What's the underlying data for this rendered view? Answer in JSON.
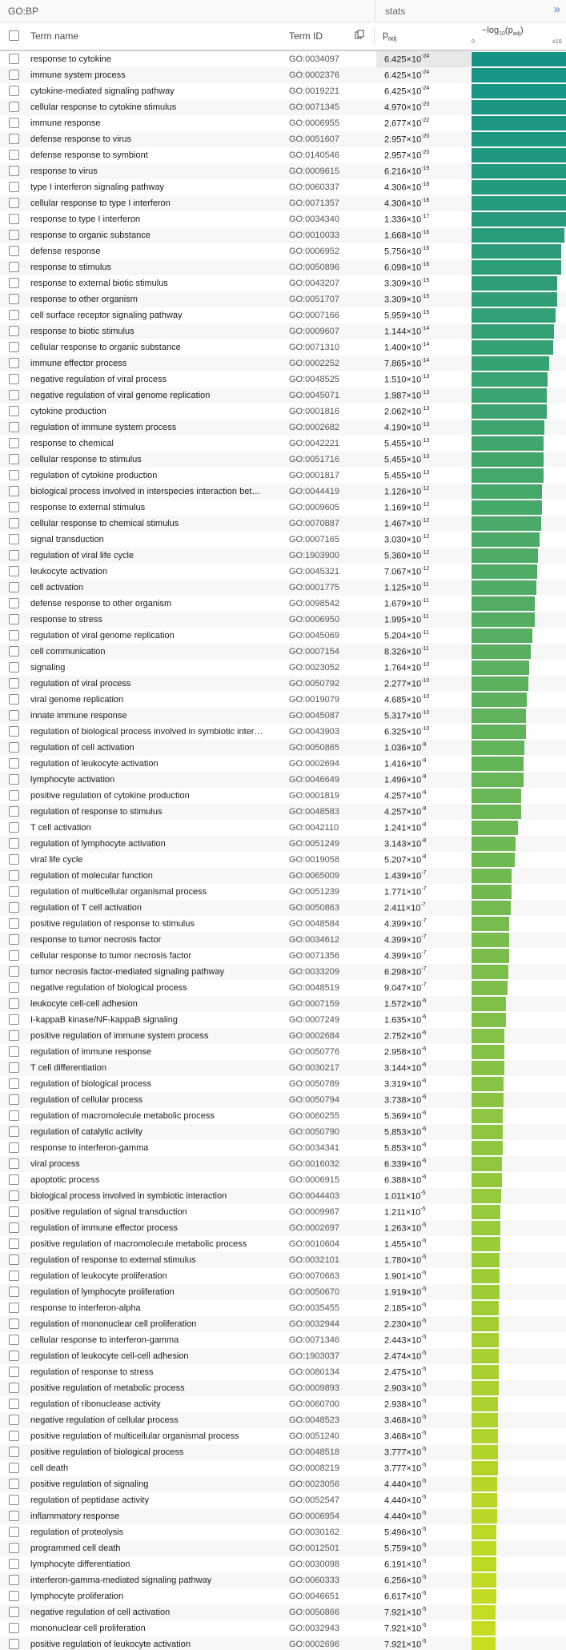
{
  "header": {
    "source": "GO:BP",
    "stats_label": "stats",
    "expand_icon": "»",
    "col_term": "Term name",
    "col_id": "Term ID",
    "col_padj_main": "p",
    "col_padj_sub": "adj",
    "col_log_pre": "−log",
    "col_log_sub": "10",
    "col_log_mid": "(p",
    "col_log_sub2": "adj",
    "col_log_post": ")",
    "scale_min": "0",
    "scale_max": "≤16"
  },
  "colors": {
    "bar_start": "#159486",
    "bar_end": "#c7dd1f",
    "link": "#4a78d6"
  },
  "rows": [
    {
      "name": "response to cytokine",
      "id": "GO:0034097",
      "m": "6.425×10",
      "e": "-24",
      "v": 16
    },
    {
      "name": "immune system process",
      "id": "GO:0002376",
      "m": "6.425×10",
      "e": "-24",
      "v": 16
    },
    {
      "name": "cytokine-mediated signaling pathway",
      "id": "GO:0019221",
      "m": "6.425×10",
      "e": "-24",
      "v": 16
    },
    {
      "name": "cellular response to cytokine stimulus",
      "id": "GO:0071345",
      "m": "4.970×10",
      "e": "-23",
      "v": 16
    },
    {
      "name": "immune response",
      "id": "GO:0006955",
      "m": "2.677×10",
      "e": "-22",
      "v": 16
    },
    {
      "name": "defense response to virus",
      "id": "GO:0051607",
      "m": "2.957×10",
      "e": "-20",
      "v": 16
    },
    {
      "name": "defense response to symbiont",
      "id": "GO:0140546",
      "m": "2.957×10",
      "e": "-20",
      "v": 16
    },
    {
      "name": "response to virus",
      "id": "GO:0009615",
      "m": "6.216×10",
      "e": "-19",
      "v": 16
    },
    {
      "name": "type I interferon signaling pathway",
      "id": "GO:0060337",
      "m": "4.306×10",
      "e": "-18",
      "v": 16
    },
    {
      "name": "cellular response to type I interferon",
      "id": "GO:0071357",
      "m": "4.306×10",
      "e": "-18",
      "v": 16
    },
    {
      "name": "response to type I interferon",
      "id": "GO:0034340",
      "m": "1.336×10",
      "e": "-17",
      "v": 16
    },
    {
      "name": "response to organic substance",
      "id": "GO:0010033",
      "m": "1.668×10",
      "e": "-16",
      "v": 15.78
    },
    {
      "name": "defense response",
      "id": "GO:0006952",
      "m": "5.756×10",
      "e": "-16",
      "v": 15.24
    },
    {
      "name": "response to stimulus",
      "id": "GO:0050896",
      "m": "6.098×10",
      "e": "-16",
      "v": 15.21
    },
    {
      "name": "response to external biotic stimulus",
      "id": "GO:0043207",
      "m": "3.309×10",
      "e": "-15",
      "v": 14.48
    },
    {
      "name": "response to other organism",
      "id": "GO:0051707",
      "m": "3.309×10",
      "e": "-15",
      "v": 14.48
    },
    {
      "name": "cell surface receptor signaling pathway",
      "id": "GO:0007166",
      "m": "5.959×10",
      "e": "-15",
      "v": 14.22
    },
    {
      "name": "response to biotic stimulus",
      "id": "GO:0009607",
      "m": "1.144×10",
      "e": "-14",
      "v": 13.94
    },
    {
      "name": "cellular response to organic substance",
      "id": "GO:0071310",
      "m": "1.400×10",
      "e": "-14",
      "v": 13.85
    },
    {
      "name": "immune effector process",
      "id": "GO:0002252",
      "m": "7.865×10",
      "e": "-14",
      "v": 13.1
    },
    {
      "name": "negative regulation of viral process",
      "id": "GO:0048525",
      "m": "1.510×10",
      "e": "-13",
      "v": 12.82
    },
    {
      "name": "negative regulation of viral genome replication",
      "id": "GO:0045071",
      "m": "1.987×10",
      "e": "-13",
      "v": 12.7
    },
    {
      "name": "cytokine production",
      "id": "GO:0001816",
      "m": "2.062×10",
      "e": "-13",
      "v": 12.69
    },
    {
      "name": "regulation of immune system process",
      "id": "GO:0002682",
      "m": "4.190×10",
      "e": "-13",
      "v": 12.38
    },
    {
      "name": "response to chemical",
      "id": "GO:0042221",
      "m": "5.455×10",
      "e": "-13",
      "v": 12.26
    },
    {
      "name": "cellular response to stimulus",
      "id": "GO:0051716",
      "m": "5.455×10",
      "e": "-13",
      "v": 12.26
    },
    {
      "name": "regulation of cytokine production",
      "id": "GO:0001817",
      "m": "5.455×10",
      "e": "-13",
      "v": 12.26
    },
    {
      "name": "biological process involved in interspecies interaction between organisms",
      "id": "GO:0044419",
      "m": "1.126×10",
      "e": "-12",
      "v": 11.95
    },
    {
      "name": "response to external stimulus",
      "id": "GO:0009605",
      "m": "1.169×10",
      "e": "-12",
      "v": 11.93
    },
    {
      "name": "cellular response to chemical stimulus",
      "id": "GO:0070887",
      "m": "1.467×10",
      "e": "-12",
      "v": 11.83
    },
    {
      "name": "signal transduction",
      "id": "GO:0007165",
      "m": "3.030×10",
      "e": "-12",
      "v": 11.52
    },
    {
      "name": "regulation of viral life cycle",
      "id": "GO:1903900",
      "m": "5.360×10",
      "e": "-12",
      "v": 11.27
    },
    {
      "name": "leukocyte activation",
      "id": "GO:0045321",
      "m": "7.067×10",
      "e": "-12",
      "v": 11.15
    },
    {
      "name": "cell activation",
      "id": "GO:0001775",
      "m": "1.125×10",
      "e": "-11",
      "v": 10.95
    },
    {
      "name": "defense response to other organism",
      "id": "GO:0098542",
      "m": "1.679×10",
      "e": "-11",
      "v": 10.77
    },
    {
      "name": "response to stress",
      "id": "GO:0006950",
      "m": "1.995×10",
      "e": "-11",
      "v": 10.7
    },
    {
      "name": "regulation of viral genome replication",
      "id": "GO:0045069",
      "m": "5.204×10",
      "e": "-11",
      "v": 10.28
    },
    {
      "name": "cell communication",
      "id": "GO:0007154",
      "m": "8.326×10",
      "e": "-11",
      "v": 10.08
    },
    {
      "name": "signaling",
      "id": "GO:0023052",
      "m": "1.764×10",
      "e": "-10",
      "v": 9.75
    },
    {
      "name": "regulation of viral process",
      "id": "GO:0050792",
      "m": "2.277×10",
      "e": "-10",
      "v": 9.64
    },
    {
      "name": "viral genome replication",
      "id": "GO:0019079",
      "m": "4.685×10",
      "e": "-10",
      "v": 9.33
    },
    {
      "name": "innate immune response",
      "id": "GO:0045087",
      "m": "5.317×10",
      "e": "-10",
      "v": 9.27
    },
    {
      "name": "regulation of biological process involved in symbiotic interaction",
      "id": "GO:0043903",
      "m": "6.325×10",
      "e": "-10",
      "v": 9.2
    },
    {
      "name": "regulation of cell activation",
      "id": "GO:0050865",
      "m": "1.036×10",
      "e": "-9",
      "v": 8.98
    },
    {
      "name": "regulation of leukocyte activation",
      "id": "GO:0002694",
      "m": "1.416×10",
      "e": "-9",
      "v": 8.85
    },
    {
      "name": "lymphocyte activation",
      "id": "GO:0046649",
      "m": "1.496×10",
      "e": "-9",
      "v": 8.83
    },
    {
      "name": "positive regulation of cytokine production",
      "id": "GO:0001819",
      "m": "4.257×10",
      "e": "-9",
      "v": 8.37
    },
    {
      "name": "regulation of response to stimulus",
      "id": "GO:0048583",
      "m": "4.257×10",
      "e": "-9",
      "v": 8.37
    },
    {
      "name": "T cell activation",
      "id": "GO:0042110",
      "m": "1.241×10",
      "e": "-8",
      "v": 7.91
    },
    {
      "name": "regulation of lymphocyte activation",
      "id": "GO:0051249",
      "m": "3.143×10",
      "e": "-8",
      "v": 7.5
    },
    {
      "name": "viral life cycle",
      "id": "GO:0019058",
      "m": "5.207×10",
      "e": "-8",
      "v": 7.28
    },
    {
      "name": "regulation of molecular function",
      "id": "GO:0065009",
      "m": "1.439×10",
      "e": "-7",
      "v": 6.84
    },
    {
      "name": "regulation of multicellular organismal process",
      "id": "GO:0051239",
      "m": "1.771×10",
      "e": "-7",
      "v": 6.75
    },
    {
      "name": "regulation of T cell activation",
      "id": "GO:0050863",
      "m": "2.411×10",
      "e": "-7",
      "v": 6.62
    },
    {
      "name": "positive regulation of response to stimulus",
      "id": "GO:0048584",
      "m": "4.399×10",
      "e": "-7",
      "v": 6.36
    },
    {
      "name": "response to tumor necrosis factor",
      "id": "GO:0034612",
      "m": "4.399×10",
      "e": "-7",
      "v": 6.36
    },
    {
      "name": "cellular response to tumor necrosis factor",
      "id": "GO:0071356",
      "m": "4.399×10",
      "e": "-7",
      "v": 6.36
    },
    {
      "name": "tumor necrosis factor-mediated signaling pathway",
      "id": "GO:0033209",
      "m": "6.298×10",
      "e": "-7",
      "v": 6.2
    },
    {
      "name": "negative regulation of biological process",
      "id": "GO:0048519",
      "m": "9.047×10",
      "e": "-7",
      "v": 6.04
    },
    {
      "name": "leukocyte cell-cell adhesion",
      "id": "GO:0007159",
      "m": "1.572×10",
      "e": "-6",
      "v": 5.8
    },
    {
      "name": "I-kappaB kinase/NF-kappaB signaling",
      "id": "GO:0007249",
      "m": "1.635×10",
      "e": "-6",
      "v": 5.79
    },
    {
      "name": "positive regulation of immune system process",
      "id": "GO:0002684",
      "m": "2.752×10",
      "e": "-6",
      "v": 5.56
    },
    {
      "name": "regulation of immune response",
      "id": "GO:0050776",
      "m": "2.958×10",
      "e": "-6",
      "v": 5.53
    },
    {
      "name": "T cell differentiation",
      "id": "GO:0030217",
      "m": "3.144×10",
      "e": "-6",
      "v": 5.5
    },
    {
      "name": "regulation of biological process",
      "id": "GO:0050789",
      "m": "3.319×10",
      "e": "-6",
      "v": 5.48
    },
    {
      "name": "regulation of cellular process",
      "id": "GO:0050794",
      "m": "3.738×10",
      "e": "-6",
      "v": 5.43
    },
    {
      "name": "regulation of macromolecule metabolic process",
      "id": "GO:0060255",
      "m": "5.369×10",
      "e": "-6",
      "v": 5.27
    },
    {
      "name": "regulation of catalytic activity",
      "id": "GO:0050790",
      "m": "5.853×10",
      "e": "-6",
      "v": 5.23
    },
    {
      "name": "response to interferon-gamma",
      "id": "GO:0034341",
      "m": "5.853×10",
      "e": "-6",
      "v": 5.23
    },
    {
      "name": "viral process",
      "id": "GO:0016032",
      "m": "6.339×10",
      "e": "-6",
      "v": 5.2
    },
    {
      "name": "apoptotic process",
      "id": "GO:0006915",
      "m": "6.388×10",
      "e": "-6",
      "v": 5.19
    },
    {
      "name": "biological process involved in symbiotic interaction",
      "id": "GO:0044403",
      "m": "1.011×10",
      "e": "-5",
      "v": 4.99
    },
    {
      "name": "positive regulation of signal transduction",
      "id": "GO:0009967",
      "m": "1.211×10",
      "e": "-5",
      "v": 4.92
    },
    {
      "name": "regulation of immune effector process",
      "id": "GO:0002697",
      "m": "1.263×10",
      "e": "-5",
      "v": 4.9
    },
    {
      "name": "positive regulation of macromolecule metabolic process",
      "id": "GO:0010604",
      "m": "1.455×10",
      "e": "-5",
      "v": 4.84
    },
    {
      "name": "regulation of response to external stimulus",
      "id": "GO:0032101",
      "m": "1.780×10",
      "e": "-5",
      "v": 4.75
    },
    {
      "name": "regulation of leukocyte proliferation",
      "id": "GO:0070663",
      "m": "1.901×10",
      "e": "-5",
      "v": 4.72
    },
    {
      "name": "regulation of lymphocyte proliferation",
      "id": "GO:0050670",
      "m": "1.919×10",
      "e": "-5",
      "v": 4.72
    },
    {
      "name": "response to interferon-alpha",
      "id": "GO:0035455",
      "m": "2.185×10",
      "e": "-5",
      "v": 4.66
    },
    {
      "name": "regulation of mononuclear cell proliferation",
      "id": "GO:0032944",
      "m": "2.230×10",
      "e": "-5",
      "v": 4.65
    },
    {
      "name": "cellular response to interferon-gamma",
      "id": "GO:0071346",
      "m": "2.443×10",
      "e": "-5",
      "v": 4.61
    },
    {
      "name": "regulation of leukocyte cell-cell adhesion",
      "id": "GO:1903037",
      "m": "2.474×10",
      "e": "-5",
      "v": 4.61
    },
    {
      "name": "regulation of response to stress",
      "id": "GO:0080134",
      "m": "2.475×10",
      "e": "-5",
      "v": 4.61
    },
    {
      "name": "positive regulation of metabolic process",
      "id": "GO:0009893",
      "m": "2.903×10",
      "e": "-5",
      "v": 4.54
    },
    {
      "name": "regulation of ribonuclease activity",
      "id": "GO:0060700",
      "m": "2.938×10",
      "e": "-5",
      "v": 4.53
    },
    {
      "name": "negative regulation of cellular process",
      "id": "GO:0048523",
      "m": "3.468×10",
      "e": "-5",
      "v": 4.46
    },
    {
      "name": "positive regulation of multicellular organismal process",
      "id": "GO:0051240",
      "m": "3.468×10",
      "e": "-5",
      "v": 4.46
    },
    {
      "name": "positive regulation of biological process",
      "id": "GO:0048518",
      "m": "3.777×10",
      "e": "-5",
      "v": 4.42
    },
    {
      "name": "cell death",
      "id": "GO:0008219",
      "m": "3.777×10",
      "e": "-5",
      "v": 4.42
    },
    {
      "name": "positive regulation of signaling",
      "id": "GO:0023056",
      "m": "4.440×10",
      "e": "-5",
      "v": 4.35
    },
    {
      "name": "regulation of peptidase activity",
      "id": "GO:0052547",
      "m": "4.440×10",
      "e": "-5",
      "v": 4.35
    },
    {
      "name": "inflammatory response",
      "id": "GO:0006954",
      "m": "4.440×10",
      "e": "-5",
      "v": 4.35
    },
    {
      "name": "regulation of proteolysis",
      "id": "GO:0030162",
      "m": "5.496×10",
      "e": "-5",
      "v": 4.26
    },
    {
      "name": "programmed cell death",
      "id": "GO:0012501",
      "m": "5.759×10",
      "e": "-5",
      "v": 4.24
    },
    {
      "name": "lymphocyte differentiation",
      "id": "GO:0030098",
      "m": "6.191×10",
      "e": "-5",
      "v": 4.21
    },
    {
      "name": "interferon-gamma-mediated signaling pathway",
      "id": "GO:0060333",
      "m": "6.256×10",
      "e": "-5",
      "v": 4.2
    },
    {
      "name": "lymphocyte proliferation",
      "id": "GO:0046651",
      "m": "6.617×10",
      "e": "-5",
      "v": 4.18
    },
    {
      "name": "negative regulation of cell activation",
      "id": "GO:0050866",
      "m": "7.921×10",
      "e": "-5",
      "v": 4.1
    },
    {
      "name": "mononuclear cell proliferation",
      "id": "GO:0032943",
      "m": "7.921×10",
      "e": "-5",
      "v": 4.1
    },
    {
      "name": "positive regulation of leukocyte activation",
      "id": "GO:0002696",
      "m": "7.921×10",
      "e": "-5",
      "v": 4.1
    }
  ]
}
